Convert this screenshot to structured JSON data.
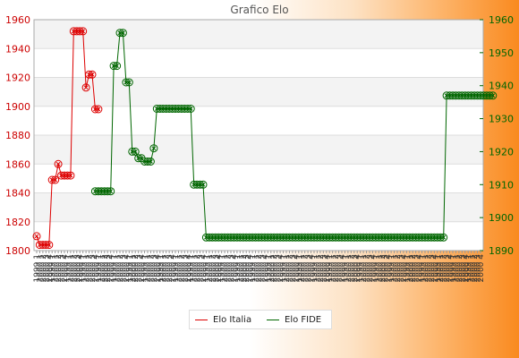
{
  "title": "Grafico Elo",
  "colors": {
    "italia": "#dd0000",
    "fide": "#006600",
    "band_light": "#f3f3f3",
    "band_white": "#ffffff"
  },
  "legend": {
    "italia_label": "Elo Italia",
    "fide_label": "Elo FIDE",
    "placement": "bottom-center"
  },
  "chart_data": {
    "type": "line",
    "title": "Grafico Elo",
    "left_axis": {
      "range": [
        1800,
        1960
      ],
      "ticks": [
        "1800",
        "1820",
        "1840",
        "1860",
        "1880",
        "1900",
        "1920",
        "1940",
        "1960"
      ]
    },
    "right_axis": {
      "range": [
        1890,
        1960
      ],
      "ticks": [
        "1890",
        "1900",
        "1910",
        "1920",
        "1930",
        "1940",
        "1950",
        "1960"
      ]
    },
    "x_tick_labels_legible": [
      "1999 1",
      "2000 1",
      "2000 2",
      "2000 3",
      "2000 4"
    ],
    "x_count": 145,
    "grid": true,
    "series": [
      {
        "name": "Elo Italia",
        "axis": "left",
        "indices": [
          0,
          1,
          2,
          3,
          4,
          5,
          6,
          7,
          8,
          9,
          10,
          11,
          12,
          13,
          14,
          15,
          16,
          17,
          18,
          19,
          20
        ],
        "values": [
          1810,
          1804,
          1804,
          1804,
          1804,
          1849,
          1849,
          1860,
          1852,
          1852,
          1852,
          1852,
          1952,
          1952,
          1952,
          1952,
          1913,
          1922,
          1922,
          1898,
          1898
        ]
      },
      {
        "name": "Elo FIDE",
        "axis": "right",
        "indices_start": 19,
        "values": [
          1908,
          1908,
          1908,
          1908,
          1908,
          1908,
          1946,
          1946,
          1956,
          1956,
          1941,
          1941,
          1920,
          1920,
          1918,
          1918,
          1917,
          1917,
          1917,
          1921,
          1933,
          1933,
          1933,
          1933,
          1933,
          1933,
          1933,
          1933,
          1933,
          1933,
          1933,
          1933,
          1910,
          1910,
          1910,
          1910,
          1894,
          1894,
          1894,
          1894,
          1894,
          1894,
          1894,
          1894,
          1894,
          1894,
          1894,
          1894,
          1894,
          1894,
          1894,
          1894,
          1894,
          1894,
          1894,
          1894,
          1894,
          1894,
          1894,
          1894,
          1894,
          1894,
          1894,
          1894,
          1894,
          1894,
          1894,
          1894,
          1894,
          1894,
          1894,
          1894,
          1894,
          1894,
          1894,
          1894,
          1894,
          1894,
          1894,
          1894,
          1894,
          1894,
          1894,
          1894,
          1894,
          1894,
          1894,
          1894,
          1894,
          1894,
          1894,
          1894,
          1894,
          1894,
          1894,
          1894,
          1894,
          1894,
          1894,
          1894,
          1894,
          1894,
          1894,
          1894,
          1894,
          1894,
          1894,
          1894,
          1894,
          1894,
          1894,
          1894,
          1894,
          1894,
          1937,
          1937,
          1937,
          1937,
          1937,
          1937,
          1937,
          1937,
          1937,
          1937,
          1937,
          1937,
          1937,
          1937,
          1937,
          1937
        ]
      }
    ]
  }
}
